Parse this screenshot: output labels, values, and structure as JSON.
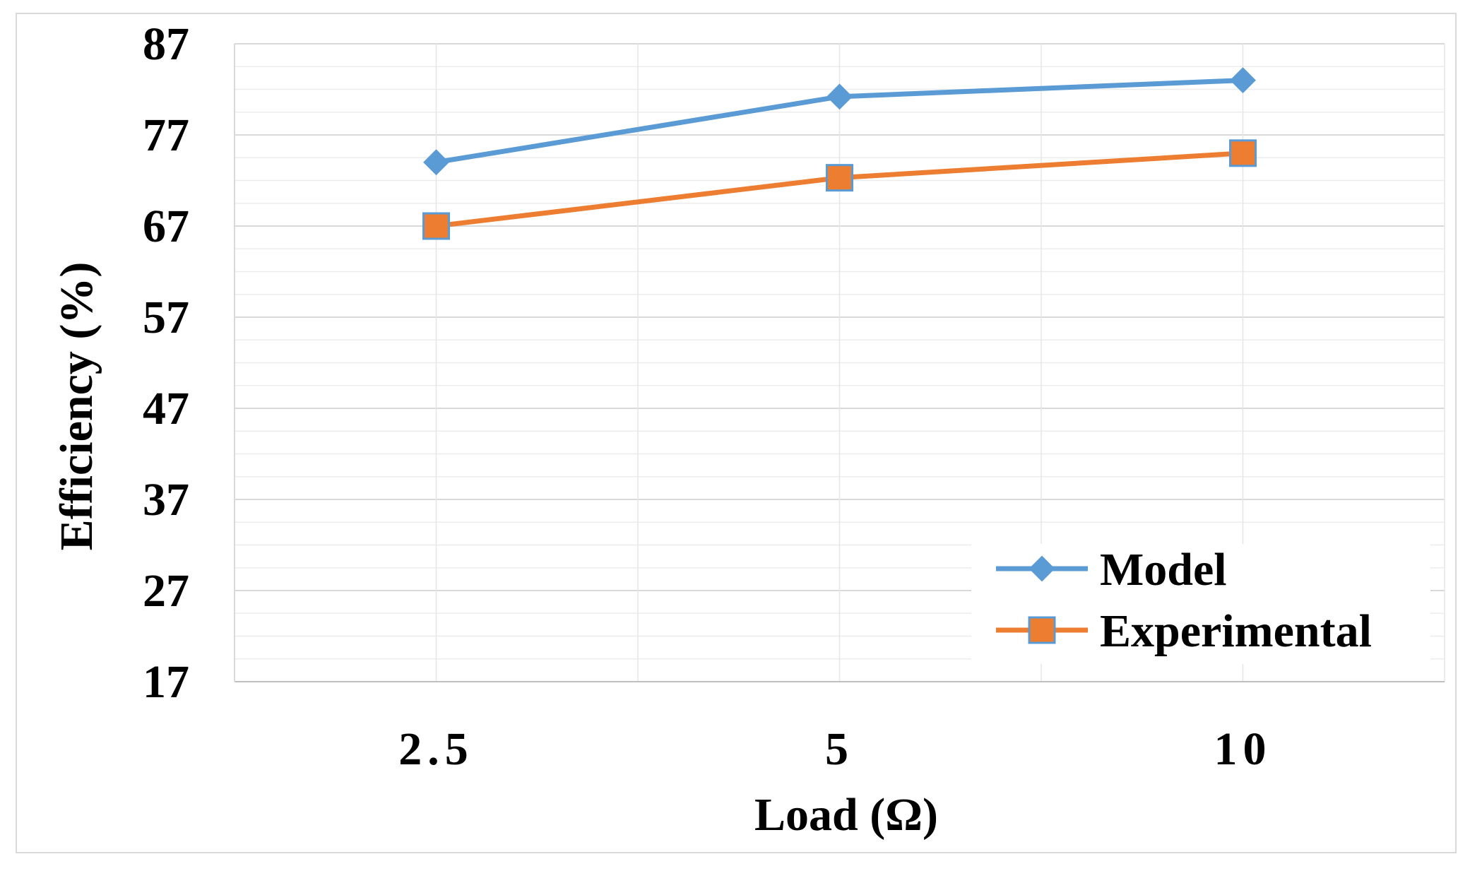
{
  "chart_data": {
    "type": "line",
    "title": "",
    "xlabel": "Load (Ω)",
    "ylabel": "Efficiency (%)",
    "categories": [
      "2.5",
      "5",
      "10"
    ],
    "ylim": [
      17,
      87
    ],
    "yticks": [
      "87",
      "77",
      "67",
      "57",
      "47",
      "37",
      "27",
      "17"
    ],
    "grid": true,
    "legend_position": "bottom-right",
    "series": [
      {
        "name": "Model",
        "values": [
          74,
          81.2,
          83
        ],
        "color": "#5b9bd5",
        "marker": "diamond"
      },
      {
        "name": "Experimental",
        "values": [
          67,
          72.3,
          75
        ],
        "color": "#ed7d31",
        "marker": "square"
      }
    ]
  }
}
